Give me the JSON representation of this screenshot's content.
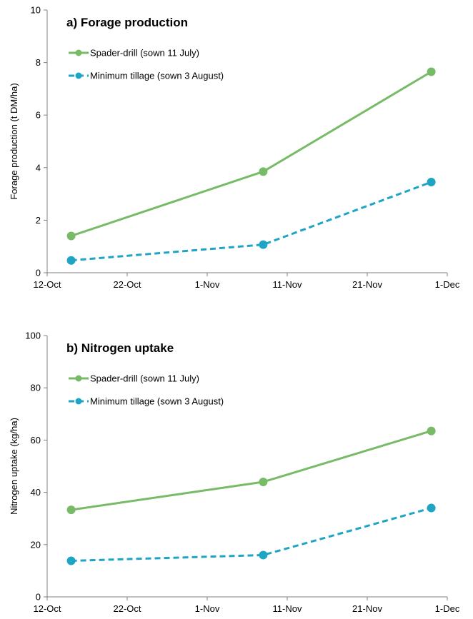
{
  "chart_data": [
    {
      "type": "line",
      "title": "a)  Forage production",
      "xlabel": "",
      "ylabel": "Forage production (t DM/ha)",
      "x_ticks": [
        "12-Oct",
        "22-Oct",
        "1-Nov",
        "11-Nov",
        "21-Nov",
        "1-Dec"
      ],
      "xlim": [
        "12-Oct",
        "1-Dec"
      ],
      "ylim": [
        0,
        10
      ],
      "y_ticks": [
        0,
        2,
        4,
        6,
        8,
        10
      ],
      "grid": false,
      "legend_position": "top-left",
      "series": [
        {
          "name": "Spader-drill (sown 11 July)",
          "color": "#77bb66",
          "dash": "solid",
          "x": [
            "15-Oct",
            "8-Nov",
            "29-Nov"
          ],
          "y": [
            1.4,
            3.85,
            7.65
          ]
        },
        {
          "name": "Minimum tillage (sown 3 August)",
          "color": "#1ea4c4",
          "dash": "dashed",
          "x": [
            "15-Oct",
            "8-Nov",
            "29-Nov"
          ],
          "y": [
            0.47,
            1.07,
            3.45
          ]
        }
      ]
    },
    {
      "type": "line",
      "title": "b)  Nitrogen uptake",
      "xlabel": "",
      "ylabel": "Nitrogen uptake (kg/ha)",
      "x_ticks": [
        "12-Oct",
        "22-Oct",
        "1-Nov",
        "11-Nov",
        "21-Nov",
        "1-Dec"
      ],
      "xlim": [
        "12-Oct",
        "1-Dec"
      ],
      "ylim": [
        0,
        100
      ],
      "y_ticks": [
        0,
        20,
        40,
        60,
        80,
        100
      ],
      "grid": false,
      "legend_position": "top-left",
      "series": [
        {
          "name": "Spader-drill (sown 11 July)",
          "color": "#77bb66",
          "dash": "solid",
          "x": [
            "15-Oct",
            "8-Nov",
            "29-Nov"
          ],
          "y": [
            33.3,
            44.0,
            63.5
          ]
        },
        {
          "name": "Minimum tillage (sown 3 August)",
          "color": "#1ea4c4",
          "dash": "dashed",
          "x": [
            "15-Oct",
            "8-Nov",
            "29-Nov"
          ],
          "y": [
            13.8,
            16.0,
            34.0
          ]
        }
      ]
    }
  ]
}
